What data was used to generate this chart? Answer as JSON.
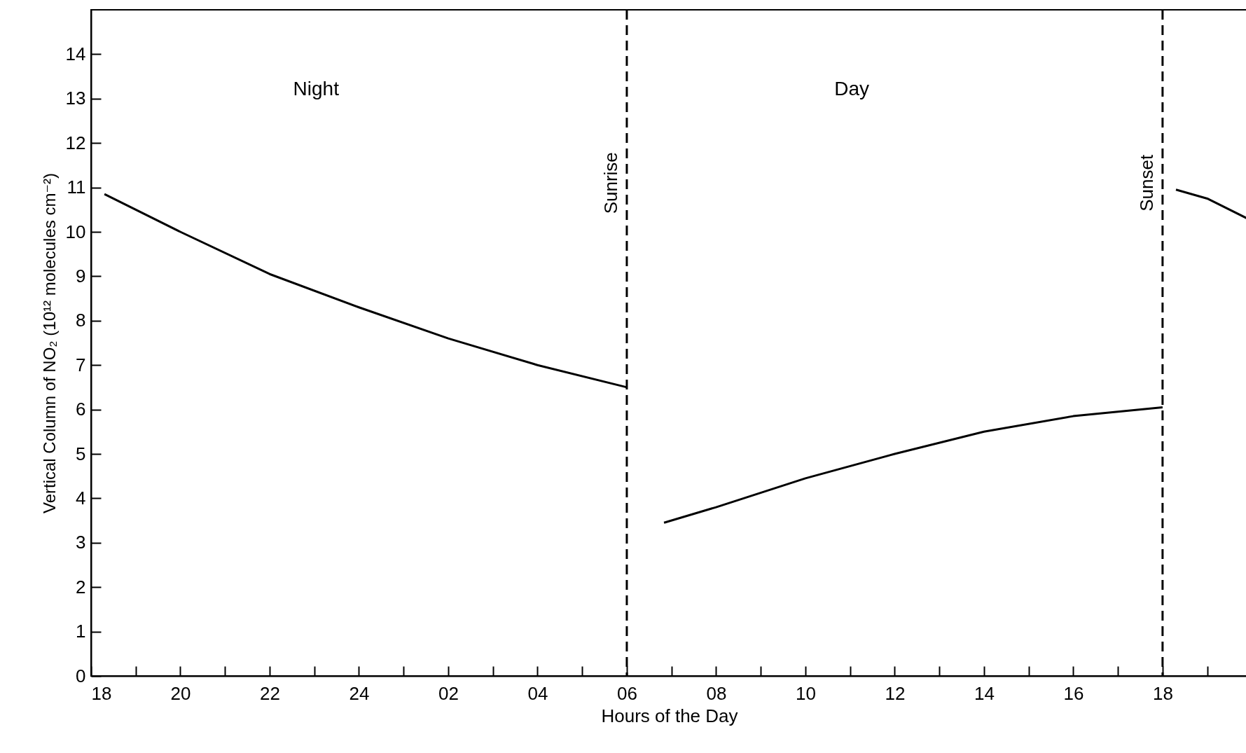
{
  "chart_data": {
    "type": "line",
    "xlabel": "Hours of the Day",
    "ylabel": "Vertical Column of NO₂ (10¹² molecules cm⁻²)",
    "annotations": [
      "Night",
      "Day"
    ],
    "series": [
      {
        "color": "#000000",
        "x": [
          "--01-01T18:18",
          "--01-01T20:00",
          "--01-01T22:00",
          "--01-02T00:00",
          "--01-02T02:00",
          "--01-02T04:00",
          "--01-02T06:00"
        ],
        "values": [
          10.85,
          10.0,
          9.05,
          8.3,
          7.6,
          7.0,
          6.5
        ]
      },
      {
        "color": "#000000",
        "x": [
          "--01-02T06:50",
          "--01-02T08:00",
          "--01-02T10:00",
          "--01-02T12:00",
          "--01-02T14:00",
          "--01-02T16:00",
          "--01-02T18:00"
        ],
        "values": [
          3.45,
          3.8,
          4.45,
          5.0,
          5.5,
          5.85,
          6.05
        ]
      },
      {
        "color": "#000000",
        "x": [
          "--01-02T18:18",
          "--01-02T19:00",
          "--01-02T19:54"
        ],
        "values": [
          10.95,
          10.75,
          10.3
        ]
      }
    ],
    "xlim": [
      "--01-01T18:00",
      "--01-02T19:54"
    ],
    "xticks": [
      {
        "value": "--01-01T18:00",
        "label": "18"
      },
      {
        "value": "--01-01T19:00",
        "label": null
      },
      {
        "value": "--01-01T20:00",
        "label": "20"
      },
      {
        "value": "--01-01T21:00",
        "label": null
      },
      {
        "value": "--01-01T22:00",
        "label": "22"
      },
      {
        "value": "--01-01T23:00",
        "label": null
      },
      {
        "value": "--01-02T00:00",
        "label": "24"
      },
      {
        "value": "--01-02T01:00",
        "label": null
      },
      {
        "value": "--01-02T02:00",
        "label": "02"
      },
      {
        "value": "--01-02T03:00",
        "label": null
      },
      {
        "value": "--01-02T04:00",
        "label": "04"
      },
      {
        "value": "--01-02T05:00",
        "label": null
      },
      {
        "value": "--01-02T06:00",
        "label": "06"
      },
      {
        "value": "--01-02T07:00",
        "label": null
      },
      {
        "value": "--01-02T08:00",
        "label": "08"
      },
      {
        "value": "--01-02T09:00",
        "label": null
      },
      {
        "value": "--01-02T10:00",
        "label": "10"
      },
      {
        "value": "--01-02T11:00",
        "label": null
      },
      {
        "value": "--01-02T12:00",
        "label": "12"
      },
      {
        "value": "--01-02T13:00",
        "label": null
      },
      {
        "value": "--01-02T14:00",
        "label": "14"
      },
      {
        "value": "--01-02T15:00",
        "label": null
      },
      {
        "value": "--01-02T16:00",
        "label": "16"
      },
      {
        "value": "--01-02T17:00",
        "label": null
      },
      {
        "value": "--01-02T18:00",
        "label": "18"
      },
      {
        "value": "--01-02T19:00",
        "label": null
      }
    ],
    "ylim": [
      0,
      15
    ],
    "yticks": [
      0,
      1,
      2,
      3,
      4,
      5,
      6,
      7,
      8,
      9,
      10,
      11,
      12,
      13,
      14
    ],
    "ref_lines": [
      {
        "axis": "x",
        "value": "--01-02T06:00",
        "label": "Sunrise",
        "line_style": "dashed",
        "color": "#000000"
      },
      {
        "axis": "x",
        "value": "--01-02T18:00",
        "label": "Sunset",
        "line_style": "dashed",
        "color": "#000000"
      }
    ],
    "grid": false,
    "marker": "none",
    "line_style": "solid"
  }
}
